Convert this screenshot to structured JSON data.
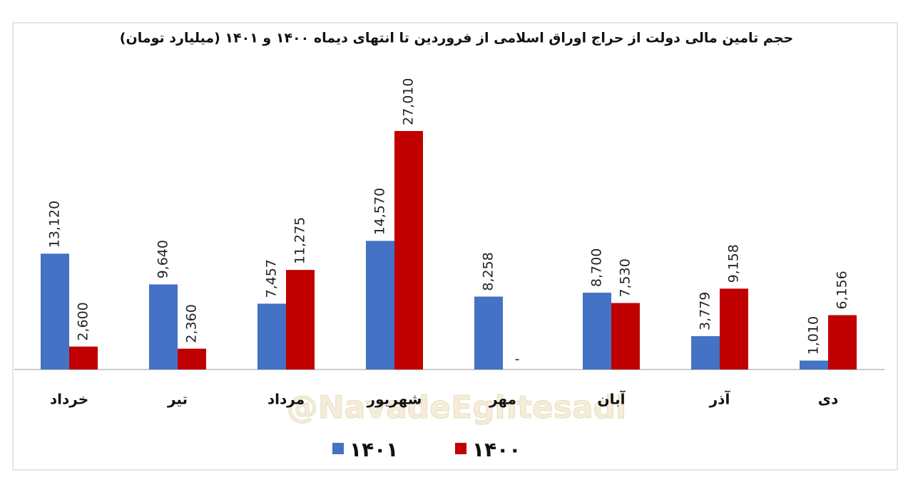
{
  "chart_data": {
    "type": "bar",
    "title": "حجم تامین مالی دولت از حراج اوراق اسلامی از فروردین تا انتهای دیماه ۱۴۰۰ و ۱۴۰۱ (میلیارد تومان)",
    "watermark": "@NavadeEghtesadi",
    "categories": [
      "خرداد",
      "تیر",
      "مرداد",
      "شهریور",
      "مهر",
      "آبان",
      "آذر",
      "دی"
    ],
    "series": [
      {
        "name": "۱۴۰۱",
        "color": "#4472c4",
        "values": [
          13120,
          9640,
          7457,
          14570,
          8258,
          8700,
          3779,
          1010
        ],
        "value_labels": [
          "13,120",
          "9,640",
          "7,457",
          "14,570",
          "8,258",
          "8,700",
          "3,779",
          "1,010"
        ]
      },
      {
        "name": "۱۴۰۰",
        "color": "#c00000",
        "values": [
          2600,
          2360,
          11275,
          27010,
          null,
          7530,
          9158,
          6156
        ],
        "value_labels": [
          "2,600",
          "2,360",
          "11,275",
          "27,010",
          "-",
          "7,530",
          "9,158",
          "6,156"
        ]
      }
    ],
    "legend": "bottom"
  }
}
